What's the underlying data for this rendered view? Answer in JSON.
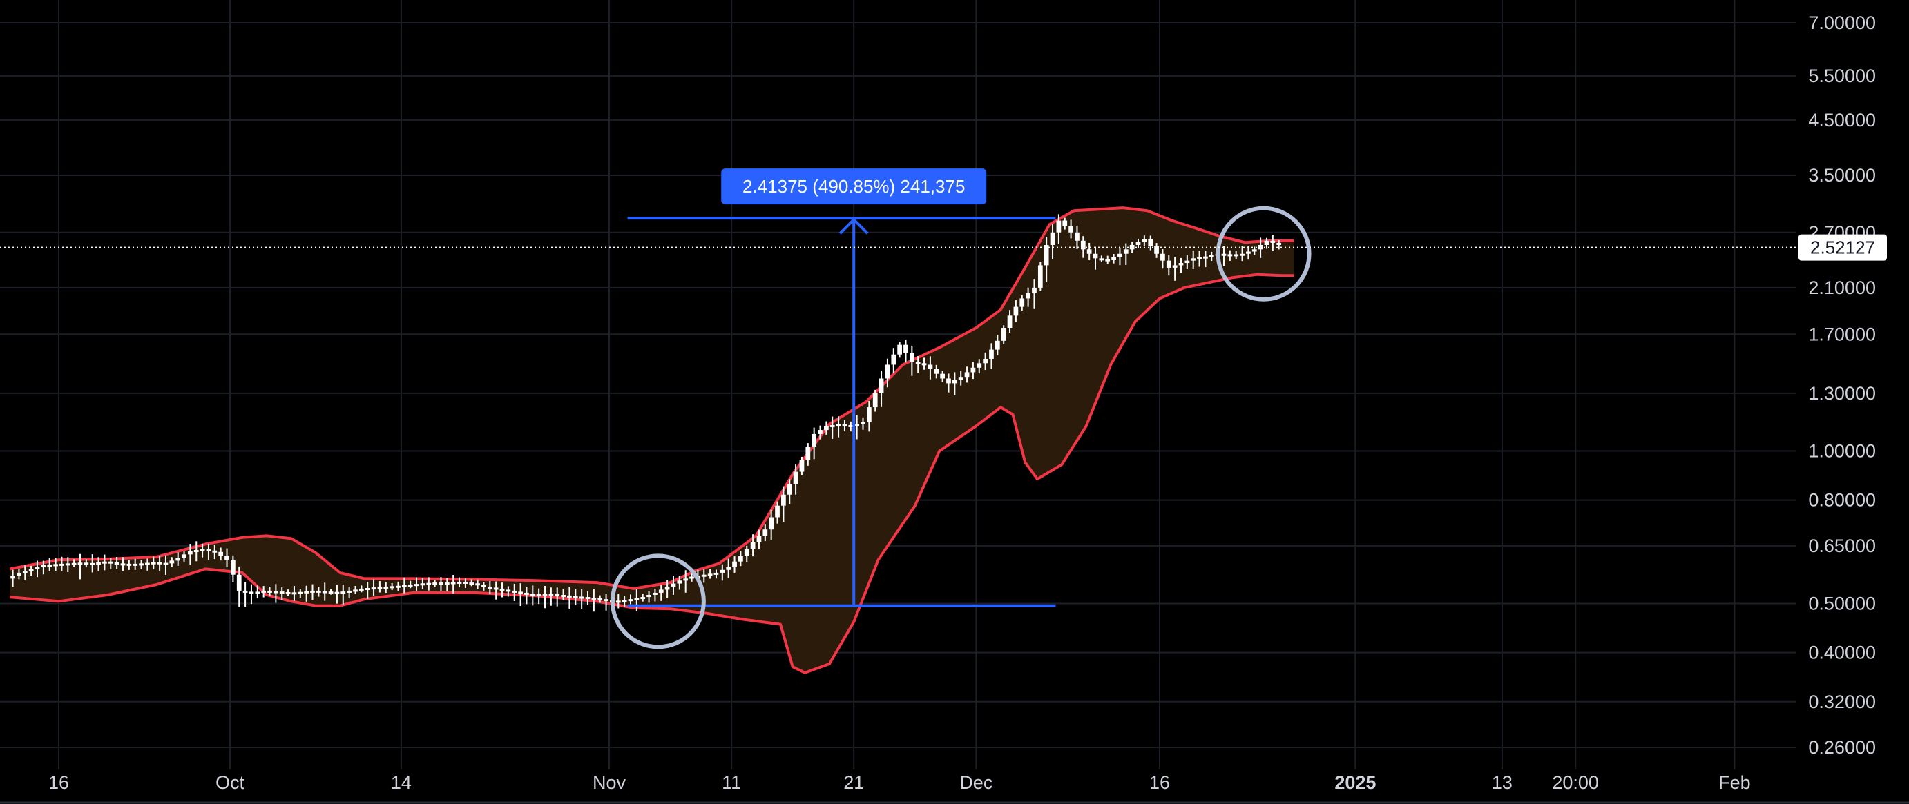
{
  "chart_data": {
    "type": "candlestick",
    "scale": "log",
    "grid": true,
    "y_axis": {
      "ticks": [
        "7.00000",
        "5.50000",
        "4.50000",
        "3.50000",
        "2.70000",
        "2.10000",
        "1.70000",
        "1.30000",
        "1.00000",
        "0.80000",
        "0.65000",
        "0.50000",
        "0.40000",
        "0.32000",
        "0.26000"
      ],
      "tick_values": [
        7.0,
        5.5,
        4.5,
        3.5,
        2.7,
        2.1,
        1.7,
        1.3,
        1.0,
        0.8,
        0.65,
        0.5,
        0.4,
        0.32,
        0.26
      ],
      "range": [
        0.225,
        8.1
      ]
    },
    "x_axis": {
      "ticks": [
        {
          "label": "16",
          "day": 16,
          "bold": false
        },
        {
          "label": "Oct",
          "day": 30,
          "bold": false
        },
        {
          "label": "14",
          "day": 44,
          "bold": false
        },
        {
          "label": "Nov",
          "day": 61,
          "bold": false
        },
        {
          "label": "11",
          "day": 71,
          "bold": false
        },
        {
          "label": "21",
          "day": 81,
          "bold": false
        },
        {
          "label": "Dec",
          "day": 91,
          "bold": false
        },
        {
          "label": "16",
          "day": 106,
          "bold": false
        },
        {
          "label": "2025",
          "day": 122,
          "bold": true
        },
        {
          "label": "13",
          "day": 134,
          "bold": false
        },
        {
          "label": "20:00",
          "day": 140,
          "bold": false
        },
        {
          "label": "Feb",
          "day": 153,
          "bold": false
        }
      ],
      "range": [
        12,
        160
      ]
    },
    "price": [
      [
        12,
        0.56
      ],
      [
        13,
        0.575
      ],
      [
        14,
        0.585
      ],
      [
        15,
        0.595
      ],
      [
        16,
        0.598
      ],
      [
        17,
        0.6
      ],
      [
        18,
        0.602
      ],
      [
        19,
        0.6
      ],
      [
        20,
        0.605
      ],
      [
        21,
        0.6
      ],
      [
        22,
        0.598
      ],
      [
        23,
        0.6
      ],
      [
        24,
        0.603
      ],
      [
        25,
        0.6
      ],
      [
        26,
        0.615
      ],
      [
        27,
        0.635
      ],
      [
        28,
        0.64
      ],
      [
        29,
        0.632
      ],
      [
        30,
        0.61
      ],
      [
        31,
        0.53
      ],
      [
        32,
        0.525
      ],
      [
        33,
        0.53
      ],
      [
        34,
        0.528
      ],
      [
        35,
        0.525
      ],
      [
        36,
        0.527
      ],
      [
        37,
        0.53
      ],
      [
        38,
        0.528
      ],
      [
        39,
        0.526
      ],
      [
        40,
        0.53
      ],
      [
        41,
        0.535
      ],
      [
        42,
        0.538
      ],
      [
        43,
        0.54
      ],
      [
        44,
        0.542
      ],
      [
        45,
        0.545
      ],
      [
        46,
        0.548
      ],
      [
        47,
        0.55
      ],
      [
        48,
        0.55
      ],
      [
        49,
        0.552
      ],
      [
        50,
        0.548
      ],
      [
        51,
        0.54
      ],
      [
        52,
        0.535
      ],
      [
        53,
        0.53
      ],
      [
        54,
        0.525
      ],
      [
        55,
        0.52
      ],
      [
        56,
        0.523
      ],
      [
        57,
        0.52
      ],
      [
        58,
        0.517
      ],
      [
        59,
        0.515
      ],
      [
        60,
        0.512
      ],
      [
        61,
        0.508
      ],
      [
        62,
        0.505
      ],
      [
        63,
        0.51
      ],
      [
        64,
        0.515
      ],
      [
        65,
        0.525
      ],
      [
        66,
        0.54
      ],
      [
        67,
        0.555
      ],
      [
        68,
        0.565
      ],
      [
        69,
        0.57
      ],
      [
        70,
        0.575
      ],
      [
        71,
        0.59
      ],
      [
        72,
        0.62
      ],
      [
        73,
        0.66
      ],
      [
        74,
        0.7
      ],
      [
        75,
        0.78
      ],
      [
        76,
        0.86
      ],
      [
        77,
        0.96
      ],
      [
        78,
        1.08
      ],
      [
        79,
        1.12
      ],
      [
        80,
        1.13
      ],
      [
        81,
        1.12
      ],
      [
        82,
        1.14
      ],
      [
        83,
        1.3
      ],
      [
        84,
        1.48
      ],
      [
        85,
        1.62
      ],
      [
        86,
        1.5
      ],
      [
        87,
        1.48
      ],
      [
        88,
        1.42
      ],
      [
        89,
        1.36
      ],
      [
        90,
        1.4
      ],
      [
        91,
        1.46
      ],
      [
        92,
        1.52
      ],
      [
        93,
        1.65
      ],
      [
        94,
        1.85
      ],
      [
        95,
        2.0
      ],
      [
        96,
        2.1
      ],
      [
        97,
        2.55
      ],
      [
        98,
        2.85
      ],
      [
        99,
        2.7
      ],
      [
        100,
        2.5
      ],
      [
        101,
        2.4
      ],
      [
        102,
        2.38
      ],
      [
        103,
        2.45
      ],
      [
        104,
        2.55
      ],
      [
        105,
        2.62
      ],
      [
        106,
        2.45
      ],
      [
        107,
        2.3
      ],
      [
        108,
        2.35
      ],
      [
        109,
        2.4
      ],
      [
        110,
        2.42
      ],
      [
        111,
        2.45
      ],
      [
        112,
        2.44
      ],
      [
        113,
        2.45
      ],
      [
        114,
        2.5
      ],
      [
        115,
        2.6
      ],
      [
        116,
        2.55
      ]
    ],
    "bb_upper": [
      [
        12,
        0.585
      ],
      [
        16,
        0.61
      ],
      [
        20,
        0.612
      ],
      [
        24,
        0.618
      ],
      [
        28,
        0.655
      ],
      [
        31,
        0.675
      ],
      [
        33,
        0.68
      ],
      [
        35,
        0.672
      ],
      [
        37,
        0.63
      ],
      [
        39,
        0.575
      ],
      [
        41,
        0.56
      ],
      [
        45,
        0.56
      ],
      [
        50,
        0.558
      ],
      [
        55,
        0.555
      ],
      [
        60,
        0.55
      ],
      [
        63,
        0.535
      ],
      [
        66,
        0.55
      ],
      [
        68,
        0.58
      ],
      [
        70,
        0.6
      ],
      [
        73,
        0.68
      ],
      [
        76,
        0.9
      ],
      [
        79,
        1.13
      ],
      [
        82,
        1.25
      ],
      [
        85,
        1.48
      ],
      [
        88,
        1.6
      ],
      [
        91,
        1.75
      ],
      [
        93,
        1.9
      ],
      [
        95,
        2.3
      ],
      [
        97,
        2.8
      ],
      [
        99,
        2.98
      ],
      [
        101,
        3.0
      ],
      [
        103,
        3.02
      ],
      [
        105,
        2.98
      ],
      [
        107,
        2.85
      ],
      [
        109,
        2.75
      ],
      [
        111,
        2.65
      ],
      [
        113,
        2.58
      ],
      [
        115,
        2.6
      ],
      [
        117,
        2.6
      ]
    ],
    "bb_lower": [
      [
        12,
        0.515
      ],
      [
        16,
        0.505
      ],
      [
        20,
        0.52
      ],
      [
        24,
        0.545
      ],
      [
        28,
        0.585
      ],
      [
        31,
        0.575
      ],
      [
        33,
        0.52
      ],
      [
        35,
        0.505
      ],
      [
        37,
        0.495
      ],
      [
        39,
        0.495
      ],
      [
        41,
        0.51
      ],
      [
        45,
        0.525
      ],
      [
        50,
        0.525
      ],
      [
        55,
        0.518
      ],
      [
        60,
        0.505
      ],
      [
        63,
        0.49
      ],
      [
        66,
        0.488
      ],
      [
        69,
        0.478
      ],
      [
        72,
        0.465
      ],
      [
        75,
        0.455
      ],
      [
        76,
        0.375
      ],
      [
        77,
        0.365
      ],
      [
        79,
        0.38
      ],
      [
        81,
        0.46
      ],
      [
        83,
        0.61
      ],
      [
        86,
        0.78
      ],
      [
        88,
        1.0
      ],
      [
        91,
        1.12
      ],
      [
        93,
        1.22
      ],
      [
        94,
        1.18
      ],
      [
        95,
        0.95
      ],
      [
        96,
        0.88
      ],
      [
        98,
        0.94
      ],
      [
        100,
        1.12
      ],
      [
        102,
        1.48
      ],
      [
        104,
        1.8
      ],
      [
        106,
        2.0
      ],
      [
        108,
        2.1
      ],
      [
        110,
        2.15
      ],
      [
        112,
        2.2
      ],
      [
        114,
        2.23
      ],
      [
        116,
        2.22
      ],
      [
        117,
        2.22
      ]
    ],
    "current_price": {
      "value": 2.52127,
      "label": "2.52127"
    },
    "measure": {
      "label": "2.41375 (490.85%) 241,375",
      "from_day": 62.5,
      "to_day": 97.5,
      "low": 0.495,
      "high": 2.88,
      "arrow_day": 81
    },
    "highlight_circles": [
      {
        "day": 65,
        "price": 0.505
      },
      {
        "day": 114.5,
        "price": 2.45
      }
    ],
    "colors": {
      "background": "#000000",
      "grid": "#1c1f26",
      "candle": "#ffffff",
      "band_line": "#f23645",
      "band_fill": "#2a1b0b",
      "measure": "#2962ff",
      "measure_label_bg": "#2962ff",
      "circle": "#b2bed6",
      "axis_text": "#d1d4dc"
    }
  }
}
